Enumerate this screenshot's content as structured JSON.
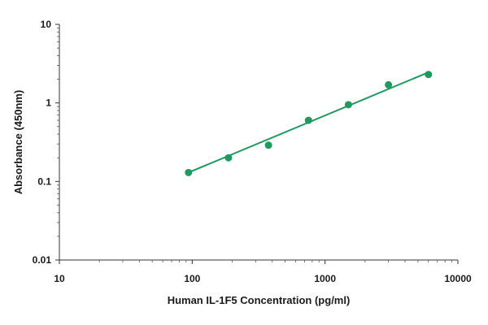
{
  "chart_data": {
    "type": "scatter",
    "title": "",
    "xlabel": "Human IL-1F5 Concentration (pg/ml)",
    "ylabel": "Absorbance (450nm)",
    "x_scale": "log",
    "y_scale": "log",
    "xlim": [
      10,
      10000
    ],
    "ylim": [
      0.01,
      10
    ],
    "x_ticks": [
      "10",
      "100",
      "1000",
      "10000"
    ],
    "y_ticks": [
      "0.01",
      "0.1",
      "1",
      "10"
    ],
    "grid": false,
    "legend": "none",
    "series": [
      {
        "x": [
          93.75,
          187.5,
          375,
          750,
          1500,
          3000,
          6000
        ],
        "y": [
          0.13,
          0.2,
          0.29,
          0.6,
          0.95,
          1.7,
          2.3
        ],
        "color": "#1f9a5e"
      }
    ],
    "fit_line": {
      "x": [
        93.75,
        6000
      ],
      "y": [
        0.13,
        2.45
      ],
      "color": "#1f9a5e"
    }
  }
}
